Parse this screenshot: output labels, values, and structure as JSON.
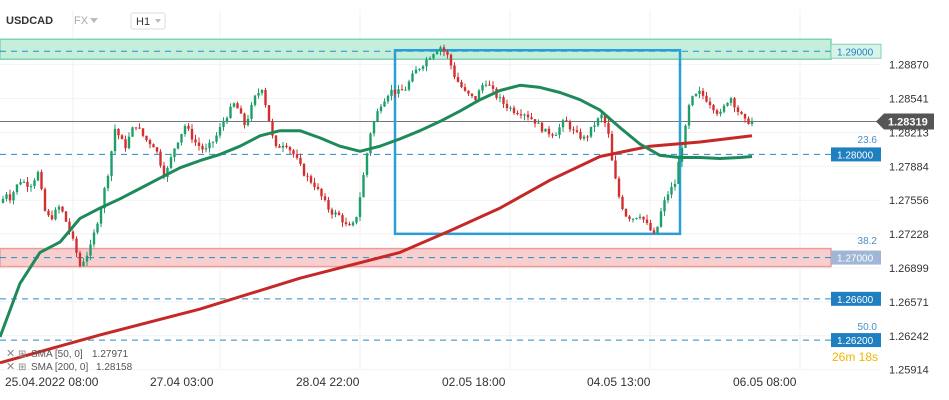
{
  "header": {
    "symbol": "USDCAD",
    "market": "FX",
    "timeframe": "H1"
  },
  "legend": {
    "sma50": "SMA [50, 0]",
    "sma50_value": "1.27971",
    "sma200": "SMA [200, 0]",
    "sma200_value": "1.28158"
  },
  "timer": "26m 18s",
  "chart_data": {
    "type": "candlestick",
    "symbol": "USDCAD",
    "timeframe": "H1",
    "ylim": [
      1.2591,
      1.294
    ],
    "y_ticks": [
      "1.28870",
      "1.28541",
      "1.28213",
      "1.27884",
      "1.27556",
      "1.27228",
      "1.26899",
      "1.26571",
      "1.26242",
      "1.25914"
    ],
    "x_ticks": [
      "25.04.2022 08:00",
      "27.04 03:00",
      "28.04 22:00",
      "02.05 18:00",
      "04.05 13:00",
      "06.05 08:00"
    ],
    "current_price": "1.28319",
    "current_price_value": 1.28319,
    "levels": [
      {
        "label": "1.29000",
        "value": 1.29,
        "zone": "green"
      },
      {
        "label": "1.28000",
        "value": 1.28,
        "zone": "none"
      },
      {
        "label": "1.27000",
        "value": 1.27,
        "zone": "red"
      },
      {
        "label": "1.26600",
        "value": 1.266,
        "zone": "none"
      },
      {
        "label": "1.26200",
        "value": 1.262,
        "zone": "none"
      }
    ],
    "fib_labels": [
      {
        "label": "23.6",
        "value": 1.2808
      },
      {
        "label": "38.2",
        "value": 1.271
      },
      {
        "label": "50.0",
        "value": 1.2627
      }
    ],
    "range_box": {
      "price_high": 1.2901,
      "price_low": 1.2723
    },
    "sma50": {
      "x": [
        0,
        20,
        40,
        60,
        80,
        100,
        120,
        140,
        160,
        180,
        200,
        220,
        240,
        260,
        280,
        300,
        320,
        340,
        360,
        380,
        400,
        420,
        440,
        460,
        480,
        500,
        520,
        540,
        560,
        580,
        600,
        620,
        640,
        660,
        680,
        700,
        720,
        740,
        752
      ],
      "y": [
        1.2623,
        1.2675,
        1.2705,
        1.2715,
        1.2738,
        1.2748,
        1.2757,
        1.2767,
        1.2777,
        1.2787,
        1.2794,
        1.28,
        1.2808,
        1.2818,
        1.2823,
        1.2823,
        1.2816,
        1.2808,
        1.2803,
        1.2808,
        1.2815,
        1.2823,
        1.2832,
        1.2842,
        1.2853,
        1.2862,
        1.2867,
        1.2865,
        1.286,
        1.2853,
        1.2843,
        1.2826,
        1.281,
        1.2799,
        1.2797,
        1.2797,
        1.2796,
        1.2797,
        1.2798
      ]
    },
    "sma200": {
      "x": [
        0,
        100,
        200,
        300,
        400,
        450,
        500,
        550,
        600,
        650,
        700,
        752
      ],
      "y": [
        1.2598,
        1.2625,
        1.265,
        1.268,
        1.2705,
        1.2726,
        1.2748,
        1.2775,
        1.2798,
        1.2808,
        1.2812,
        1.2818
      ]
    },
    "close_path": {
      "x": [
        0,
        5,
        10,
        20,
        30,
        38,
        45,
        50,
        60,
        68,
        75,
        80,
        90,
        100,
        108,
        115,
        125,
        135,
        145,
        155,
        165,
        175,
        185,
        195,
        205,
        215,
        225,
        235,
        245,
        255,
        262,
        268,
        275,
        285,
        295,
        305,
        315,
        322,
        330,
        340,
        348,
        355,
        362,
        370,
        380,
        390,
        398,
        405,
        415,
        425,
        432,
        440,
        448,
        455,
        465,
        475,
        485,
        495,
        505,
        515,
        525,
        535,
        545,
        555,
        565,
        575,
        585,
        595,
        602,
        608,
        612,
        618,
        625,
        632,
        640,
        648,
        655,
        662,
        668,
        675,
        680,
        685,
        690,
        700,
        710,
        720,
        730,
        738,
        745,
        752
      ],
      "y": [
        1.2745,
        1.2765,
        1.2758,
        1.2775,
        1.277,
        1.2782,
        1.2745,
        1.2737,
        1.275,
        1.273,
        1.271,
        1.2692,
        1.2708,
        1.2745,
        1.2782,
        1.2825,
        1.2807,
        1.283,
        1.2815,
        1.2808,
        1.2778,
        1.2808,
        1.2828,
        1.2812,
        1.2803,
        1.2815,
        1.2835,
        1.285,
        1.2828,
        1.2855,
        1.2865,
        1.2838,
        1.2805,
        1.2812,
        1.2798,
        1.278,
        1.277,
        1.2758,
        1.2745,
        1.274,
        1.2728,
        1.2733,
        1.277,
        1.282,
        1.2848,
        1.2862,
        1.286,
        1.2863,
        1.288,
        1.289,
        1.2898,
        1.2905,
        1.2895,
        1.2875,
        1.286,
        1.2853,
        1.2872,
        1.2858,
        1.2848,
        1.2842,
        1.284,
        1.2832,
        1.2822,
        1.282,
        1.2833,
        1.282,
        1.2815,
        1.283,
        1.2838,
        1.2822,
        1.2793,
        1.2762,
        1.2742,
        1.2738,
        1.2742,
        1.273,
        1.272,
        1.2748,
        1.2762,
        1.2772,
        1.28,
        1.2822,
        1.2852,
        1.286,
        1.285,
        1.2838,
        1.2857,
        1.2842,
        1.2832,
        1.2832
      ]
    }
  }
}
